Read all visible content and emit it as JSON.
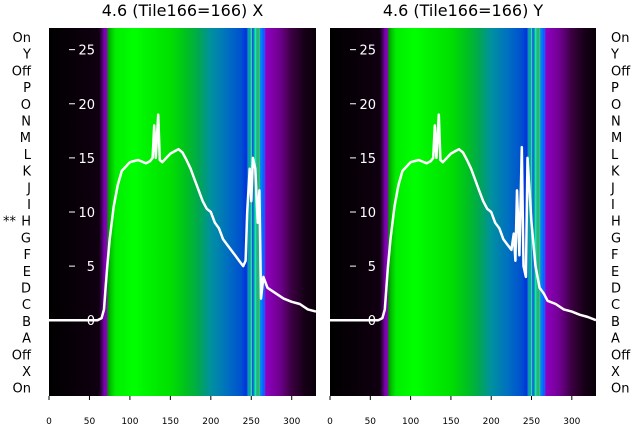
{
  "chart_data": [
    {
      "type": "heatmap",
      "title": "4.6 (Tile166=166) X",
      "xlabel": "",
      "ylabel": "",
      "xlim": [
        0,
        330
      ],
      "x_ticks": [
        0,
        50,
        100,
        150,
        200,
        250,
        300
      ],
      "ylim": [
        -7,
        27
      ],
      "y_ticks": [
        0,
        5,
        10,
        15,
        20,
        25
      ],
      "row_labels": [
        "On",
        "Y",
        "Off",
        "P",
        "O",
        "N",
        "M",
        "L",
        "K",
        "J",
        "I",
        "H",
        "G",
        "F",
        "E",
        "D",
        "C",
        "B",
        "A",
        "Off",
        "X",
        "On"
      ],
      "marked_row": "H",
      "marker": "**",
      "line_x": [
        0,
        10,
        20,
        30,
        40,
        50,
        60,
        65,
        68,
        70,
        72,
        75,
        80,
        85,
        90,
        95,
        100,
        110,
        120,
        125,
        128,
        130,
        132,
        135,
        137,
        140,
        145,
        150,
        155,
        160,
        165,
        170,
        175,
        180,
        185,
        190,
        195,
        200,
        205,
        210,
        215,
        220,
        225,
        230,
        235,
        240,
        243,
        245,
        248,
        250,
        252,
        255,
        258,
        260,
        262,
        265,
        270,
        280,
        290,
        300,
        310,
        320,
        330
      ],
      "line_y": [
        0,
        0,
        0,
        0,
        0,
        0,
        0,
        0.2,
        1,
        3,
        5,
        7.5,
        10.5,
        12.5,
        13.8,
        14.2,
        14.6,
        14.8,
        14.5,
        14.7,
        15,
        18,
        15,
        19,
        14.8,
        14.6,
        15,
        15.4,
        15.6,
        15.8,
        15.5,
        14.8,
        14,
        13,
        12,
        11,
        10.3,
        10,
        9,
        8.5,
        7.5,
        7,
        6.5,
        6,
        5.5,
        5,
        5.5,
        10,
        14,
        11,
        15,
        14,
        9,
        12,
        2,
        4,
        3,
        2.5,
        2,
        1.7,
        1.5,
        1,
        0.8
      ]
    },
    {
      "type": "heatmap",
      "title": "4.6 (Tile166=166) Y",
      "xlabel": "",
      "ylabel": "",
      "xlim": [
        0,
        330
      ],
      "x_ticks": [
        0,
        50,
        100,
        150,
        200,
        250,
        300
      ],
      "ylim": [
        -7,
        27
      ],
      "y_ticks": [
        0,
        5,
        10,
        15,
        20,
        25
      ],
      "row_labels": [
        "On",
        "Y",
        "Off",
        "P",
        "O",
        "N",
        "M",
        "L",
        "K",
        "J",
        "I",
        "H",
        "G",
        "F",
        "E",
        "D",
        "C",
        "B",
        "A",
        "Off",
        "X",
        "On"
      ],
      "line_x": [
        0,
        10,
        20,
        30,
        40,
        50,
        60,
        65,
        68,
        70,
        72,
        75,
        80,
        85,
        90,
        95,
        100,
        110,
        120,
        125,
        128,
        130,
        132,
        135,
        137,
        140,
        145,
        150,
        155,
        160,
        165,
        170,
        175,
        180,
        185,
        190,
        195,
        200,
        205,
        210,
        215,
        220,
        225,
        228,
        230,
        232,
        235,
        238,
        240,
        243,
        245,
        250,
        255,
        260,
        265,
        270,
        280,
        290,
        300,
        310,
        320,
        330
      ],
      "line_y": [
        0,
        0,
        0,
        0,
        0,
        0,
        0,
        0.2,
        1,
        3,
        5,
        7.5,
        10.5,
        12.5,
        13.8,
        14.2,
        14.6,
        14.8,
        14.5,
        14.7,
        15,
        18,
        15,
        19,
        14.8,
        14.6,
        15,
        15.4,
        15.6,
        15.8,
        15.5,
        14.8,
        14,
        13,
        12,
        11,
        10.3,
        10,
        9,
        8.5,
        7.5,
        7,
        6.5,
        8,
        5.5,
        12,
        6,
        16,
        5,
        4,
        15,
        9,
        5,
        3,
        2.5,
        1.8,
        1.5,
        1,
        0.8,
        0.5,
        0.3,
        0
      ]
    }
  ],
  "colors": {
    "line": "#ffffff",
    "background_left": "#000000",
    "band_green": "#00ee00",
    "band_blue": "#0033cc",
    "band_purple": "#8a00b0"
  }
}
